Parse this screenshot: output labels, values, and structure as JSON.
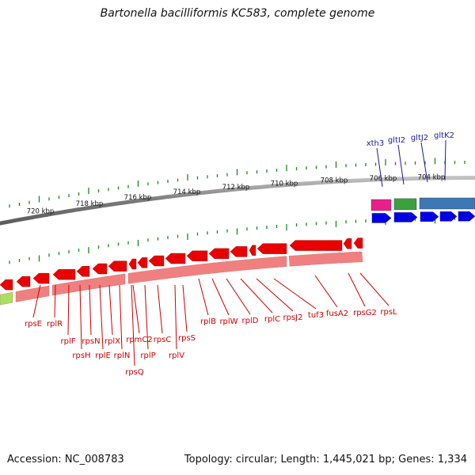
{
  "title": "Bartonella bacilliformis KC583, complete genome",
  "footer": {
    "accession": "Accession: NC_008783",
    "summary": "Topology: circular; Length: 1,445,021 bp; Genes: 1,334"
  },
  "scale_labels": [
    "720 kbp",
    "718 kbp",
    "716 kbp",
    "714 kbp",
    "712 kbp",
    "710 kbp",
    "708 kbp",
    "706 kbp",
    "704 kbp"
  ],
  "colors": {
    "backbone": "#808080",
    "forward_cds": "#0000e0",
    "reverse_cds": "#e80000",
    "reverse_gene": "#f08080",
    "reverse_label": "#cc0000",
    "forward_label": "#1a1aa0",
    "tick": "#1a8a1a",
    "xth3_gene": "#e8208a",
    "gltI2_gene": "#3aa040",
    "gltJ2_gene": "#3c78b4"
  },
  "forward_gene_labels": [
    "xth3",
    "gltI2",
    "gltJ2",
    "gltK2"
  ],
  "reverse_gene_labels": [
    "rpsE",
    "rplR",
    "rplF",
    "rpsH",
    "rpsN",
    "rplE",
    "rplX",
    "rplN",
    "rpmC2",
    "rpsQ",
    "rplP",
    "rpsC",
    "rplV",
    "rpsS",
    "rplB",
    "rplW",
    "rplD",
    "rplC",
    "rpsJ2",
    "tuf3",
    "fusA2",
    "rpsG2",
    "rpsL"
  ]
}
